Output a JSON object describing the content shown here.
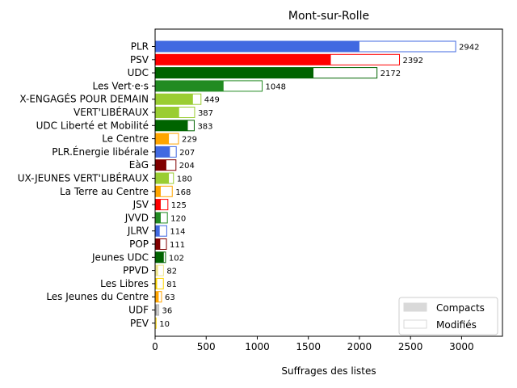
{
  "chart_data": {
    "type": "bar",
    "orientation": "horizontal",
    "stacked": true,
    "title": "Mont-sur-Rolle",
    "xlabel": "Suffrages des listes",
    "ylabel": "",
    "xlim": [
      0,
      3400
    ],
    "xticks": [
      0,
      500,
      1000,
      1500,
      2000,
      2500,
      3000
    ],
    "grid": false,
    "legend_position": "bottom-right",
    "legend": [
      {
        "name": "Compacts",
        "style": "filled",
        "color": "#d9d9d9"
      },
      {
        "name": "Modifiés",
        "style": "outline",
        "color": "#d9d9d9"
      }
    ],
    "categories": [
      "PLR",
      "PSV",
      "UDC",
      "Les Vert·e·s",
      "X-ENGAGÉS POUR DEMAIN",
      "VERT'LIBÉRAUX",
      "UDC Liberté et Mobilité",
      "Le Centre",
      "PLR.Énergie libérale",
      "EàG",
      "UX-JEUNES VERT'LIBÉRAUX",
      "La Terre au Centre",
      "JSV",
      "JVVD",
      "JLRV",
      "POP",
      "Jeunes UDC",
      "PPVD",
      "Les Libres",
      "Les Jeunes du Centre",
      "UDF",
      "PEV"
    ],
    "colors": [
      "#4169e1",
      "#ff0000",
      "#006400",
      "#228b22",
      "#9acd32",
      "#9acd32",
      "#006400",
      "#ffa500",
      "#4169e1",
      "#800000",
      "#9acd32",
      "#ffa500",
      "#ff0000",
      "#228b22",
      "#4169e1",
      "#800000",
      "#006400",
      "#f0e68c",
      "#ffd700",
      "#ffa500",
      "#a9a9a9",
      "#ffd700"
    ],
    "totals": [
      2942,
      2392,
      2172,
      1048,
      449,
      387,
      383,
      229,
      207,
      204,
      180,
      168,
      125,
      120,
      114,
      111,
      102,
      82,
      81,
      63,
      36,
      10
    ],
    "compacts": [
      2000,
      1720,
      1550,
      670,
      370,
      235,
      320,
      135,
      145,
      110,
      135,
      55,
      55,
      55,
      45,
      50,
      85,
      30,
      20,
      35,
      25,
      5
    ],
    "total_labels": [
      "2942",
      "2392",
      "2172",
      "1048",
      "449",
      "387",
      "383",
      "229",
      "207",
      "204",
      "180",
      "168",
      "125",
      "120",
      "114",
      "111",
      "102",
      "82",
      "81",
      "63",
      "36",
      "10"
    ]
  }
}
